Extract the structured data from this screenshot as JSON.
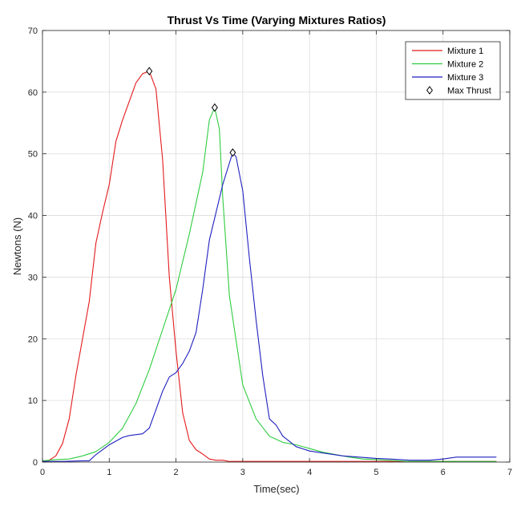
{
  "chart_data": {
    "type": "line",
    "title": "Thrust Vs Time (Varying Mixtures Ratios)",
    "xlabel": "Time(sec)",
    "ylabel": "Newtons (N)",
    "xlim": [
      0,
      7
    ],
    "ylim": [
      0,
      70
    ],
    "xticks": [
      0,
      1,
      2,
      3,
      4,
      5,
      6,
      7
    ],
    "yticks": [
      0,
      10,
      20,
      30,
      40,
      50,
      60,
      70
    ],
    "grid": true,
    "legend_position": "top-right",
    "series": [
      {
        "name": "Mixture 1",
        "color": "#e41a1c",
        "x": [
          0,
          0.1,
          0.2,
          0.3,
          0.4,
          0.5,
          0.6,
          0.7,
          0.8,
          0.9,
          1.0,
          1.1,
          1.2,
          1.3,
          1.4,
          1.5,
          1.6,
          1.7,
          1.8,
          1.9,
          2.0,
          2.1,
          2.2,
          2.3,
          2.4,
          2.5,
          2.6,
          2.7,
          2.8,
          3.0,
          4.0,
          5.0,
          6.0,
          6.8
        ],
        "y": [
          0,
          0.3,
          1.0,
          3.0,
          7.0,
          14.0,
          20.0,
          26.0,
          35.5,
          40.5,
          45.0,
          52.0,
          55.5,
          58.5,
          61.5,
          63.0,
          63.4,
          60.5,
          49.0,
          30.0,
          18.0,
          8.0,
          3.5,
          2.0,
          1.3,
          0.5,
          0.3,
          0.3,
          0.1,
          0.1,
          0.1,
          0.1,
          0.1,
          0.1
        ]
      },
      {
        "name": "Mixture 2",
        "color": "#2ecc40",
        "x": [
          0,
          0.2,
          0.4,
          0.6,
          0.8,
          1.0,
          1.2,
          1.4,
          1.6,
          1.8,
          2.0,
          2.2,
          2.4,
          2.5,
          2.58,
          2.65,
          2.7,
          2.8,
          3.0,
          3.2,
          3.4,
          3.6,
          3.8,
          4.0,
          4.2,
          4.4,
          4.6,
          4.8,
          5.0,
          5.5,
          6.0,
          6.8
        ],
        "y": [
          0.2,
          0.4,
          0.5,
          1.0,
          1.7,
          3.2,
          5.5,
          9.5,
          15.0,
          21.5,
          28.0,
          37.0,
          47.0,
          55.5,
          57.5,
          54.0,
          43.0,
          27.0,
          12.5,
          7.0,
          4.2,
          3.2,
          2.8,
          2.2,
          1.6,
          1.2,
          0.8,
          0.5,
          0.4,
          0.1,
          0.1,
          0.1
        ]
      },
      {
        "name": "Mixture 3",
        "color": "#1f1fbf",
        "x": [
          0,
          0.3,
          0.6,
          0.7,
          0.8,
          1.0,
          1.2,
          1.3,
          1.5,
          1.6,
          1.7,
          1.8,
          1.9,
          2.0,
          2.1,
          2.2,
          2.3,
          2.4,
          2.5,
          2.6,
          2.7,
          2.8,
          2.85,
          2.9,
          3.0,
          3.1,
          3.2,
          3.3,
          3.4,
          3.5,
          3.6,
          3.8,
          4.0,
          4.5,
          5.0,
          5.2,
          5.5,
          5.6,
          5.8,
          6.0,
          6.2,
          6.5,
          6.8
        ],
        "y": [
          0.1,
          0.1,
          0.2,
          0.2,
          1.2,
          2.8,
          4.0,
          4.3,
          4.6,
          5.5,
          8.5,
          11.5,
          13.8,
          14.5,
          16.0,
          18.0,
          21.0,
          28.0,
          36.0,
          40.5,
          45.0,
          48.5,
          50.2,
          49.5,
          44.0,
          33.0,
          23.0,
          14.0,
          7.0,
          6.0,
          4.2,
          2.5,
          1.8,
          1.0,
          0.6,
          0.5,
          0.3,
          0.3,
          0.3,
          0.5,
          0.8,
          0.8,
          0.8
        ]
      }
    ],
    "max_thrust": {
      "name": "Max Thrust",
      "marker": "diamond",
      "points": [
        {
          "x": 1.6,
          "y": 63.4
        },
        {
          "x": 2.58,
          "y": 57.5
        },
        {
          "x": 2.85,
          "y": 50.2
        }
      ]
    }
  }
}
